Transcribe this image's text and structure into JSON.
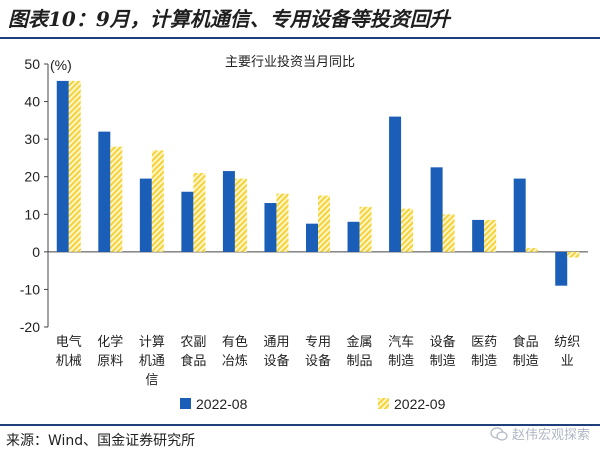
{
  "figure_title": "图表10：9月，计算机通信、专用设备等投资回升",
  "source_note": "来源：Wind、国金证券研究所",
  "watermark": "赵伟宏观探索",
  "colors": {
    "series_2208": "#1a5eb8",
    "series_2209": "#f5d23a",
    "rule": "#1f3f7a"
  },
  "chart_data": {
    "type": "bar",
    "title": "主要行业投资当月同比",
    "unit_label": "(%)",
    "ylim": [
      -20,
      50
    ],
    "yticks": [
      -20,
      -10,
      0,
      10,
      20,
      30,
      40,
      50
    ],
    "legend_position": "bottom",
    "categories": [
      [
        "电气",
        "机械"
      ],
      [
        "化学",
        "原料"
      ],
      [
        "计算",
        "机通",
        "信"
      ],
      [
        "农副",
        "食品"
      ],
      [
        "有色",
        "冶炼"
      ],
      [
        "通用",
        "设备"
      ],
      [
        "专用",
        "设备"
      ],
      [
        "金属",
        "制品"
      ],
      [
        "汽车",
        "制造"
      ],
      [
        "设备",
        "制造"
      ],
      [
        "医药",
        "制造"
      ],
      [
        "食品",
        "制造"
      ],
      [
        "纺织",
        "业"
      ]
    ],
    "series": [
      {
        "name": "2022-08",
        "pattern": "solid",
        "values": [
          45.5,
          32.0,
          19.5,
          16.0,
          21.5,
          13.0,
          7.5,
          8.0,
          36.0,
          22.5,
          8.5,
          19.5,
          -9.0
        ]
      },
      {
        "name": "2022-09",
        "pattern": "hatched",
        "values": [
          45.5,
          28.0,
          27.0,
          21.0,
          19.5,
          15.5,
          15.0,
          12.0,
          11.5,
          10.0,
          8.5,
          1.0,
          -1.5
        ]
      }
    ]
  }
}
